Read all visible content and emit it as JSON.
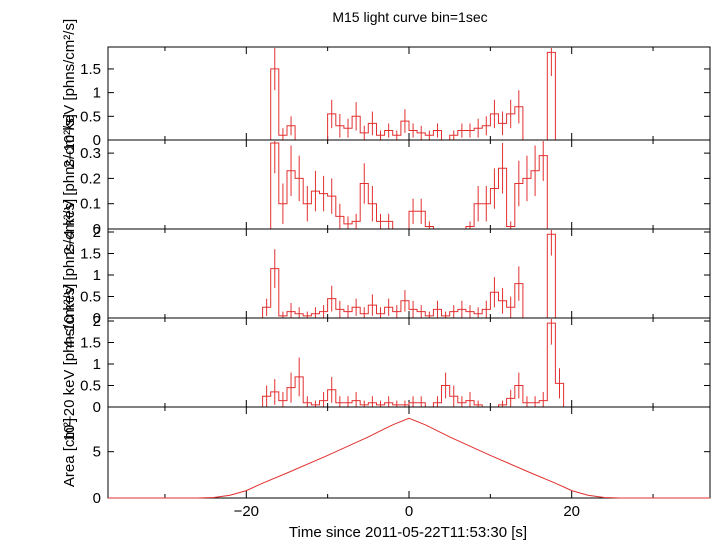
{
  "chart_data": {
    "type": "line",
    "title": "M15 light curve bin=1sec",
    "xlabel": "Time since 2011-05-22T11:53:30 [s]",
    "xlim": [
      -37,
      37
    ],
    "xticks": [
      -20,
      0,
      20
    ],
    "xtick_labels": [
      "−20",
      "0",
      "20"
    ],
    "color": "#e23030",
    "grid": false,
    "panels": [
      {
        "ylabel": "2–10 keV [phns/cm²/s]",
        "ylim": [
          0,
          1.9
        ],
        "yticks": [
          0,
          0.5,
          1,
          1.5
        ],
        "ytick_labels": [
          "0",
          "0.5",
          "1",
          "1.5"
        ],
        "series": [
          {
            "x": [
              -37,
              -19,
              -18,
              -17,
              -16,
              -15,
              -14,
              -13,
              -12,
              -11,
              -10,
              -9,
              -8,
              -7,
              -6,
              -5,
              -4,
              -3,
              -2,
              -1,
              0,
              1,
              2,
              3,
              4,
              5,
              6,
              7,
              8,
              9,
              10,
              11,
              12,
              13,
              14,
              15,
              16,
              17,
              18,
              37
            ],
            "values": [
              0,
              0,
              0,
              1.5,
              0.1,
              0.3,
              0,
              0,
              0,
              0,
              0.55,
              0.3,
              0.25,
              0.5,
              0.15,
              0.35,
              0.1,
              0.2,
              0.1,
              0.4,
              0.2,
              0.15,
              0.1,
              0.2,
              0,
              0.1,
              0.2,
              0.2,
              0.25,
              0.3,
              0.55,
              0.35,
              0.55,
              0.7,
              0,
              0,
              0,
              1.85,
              0,
              0
            ],
            "errors": [
              0,
              0,
              0,
              0.45,
              0.15,
              0.2,
              0,
              0,
              0,
              0,
              0.3,
              0.25,
              0.2,
              0.3,
              0.15,
              0.25,
              0.1,
              0.15,
              0.1,
              0.25,
              0.15,
              0.15,
              0.1,
              0.15,
              0,
              0.1,
              0.15,
              0.15,
              0.2,
              0.2,
              0.3,
              0.25,
              0.3,
              0.35,
              0,
              0,
              0,
              0.5,
              0,
              0
            ]
          }
        ]
      },
      {
        "ylabel": "2–4 keV [phns/cm²/s]",
        "ylim": [
          0,
          0.34
        ],
        "yticks": [
          0,
          0.1,
          0.2,
          0.3
        ],
        "ytick_labels": [
          "0",
          "0.1",
          "0.2",
          "0.3"
        ],
        "series": [
          {
            "x": [
              -37,
              -19,
              -18,
              -17,
              -16,
              -15,
              -14,
              -13,
              -12,
              -11,
              -10,
              -9,
              -8,
              -7,
              -6,
              -5,
              -4,
              -3,
              -2,
              -1,
              0,
              1,
              2,
              3,
              4,
              5,
              6,
              7,
              8,
              9,
              10,
              11,
              12,
              13,
              14,
              15,
              16,
              17,
              18,
              37
            ],
            "values": [
              0,
              0,
              0,
              0.34,
              0.1,
              0.23,
              0.2,
              0.1,
              0.15,
              0.14,
              0.13,
              0.05,
              0.02,
              0.03,
              0.18,
              0.1,
              0.03,
              0.03,
              0,
              0,
              0.07,
              0.07,
              0.01,
              0,
              0,
              0,
              0,
              0.01,
              0.1,
              0.1,
              0.16,
              0.24,
              0.01,
              0.18,
              0.2,
              0.23,
              0.29,
              0,
              0,
              0
            ],
            "errors": [
              0,
              0,
              0,
              0.12,
              0.08,
              0.1,
              0.09,
              0.07,
              0.08,
              0.07,
              0.07,
              0.05,
              0.03,
              0.03,
              0.08,
              0.07,
              0.03,
              0.03,
              0,
              0,
              0.05,
              0.05,
              0.02,
              0,
              0,
              0,
              0,
              0.02,
              0.07,
              0.07,
              0.08,
              0.1,
              0.02,
              0.09,
              0.09,
              0.1,
              0.1,
              0,
              0,
              0
            ]
          }
        ]
      },
      {
        "ylabel": "4–10 keV [phns/cm²/s]",
        "ylim": [
          0,
          2.0
        ],
        "yticks": [
          0,
          0.5,
          1,
          1.5,
          2
        ],
        "ytick_labels": [
          "0",
          "0.5",
          "1",
          "1.5",
          "2"
        ],
        "series": [
          {
            "x": [
              -37,
              -19,
              -18,
              -17,
              -16,
              -15,
              -14,
              -13,
              -12,
              -11,
              -10,
              -9,
              -8,
              -7,
              -6,
              -5,
              -4,
              -3,
              -2,
              -1,
              0,
              1,
              2,
              3,
              4,
              5,
              6,
              7,
              8,
              9,
              10,
              11,
              12,
              13,
              14,
              15,
              16,
              17,
              18,
              37
            ],
            "values": [
              0,
              0,
              0.25,
              1.15,
              0.05,
              0.15,
              0.1,
              0.05,
              0.1,
              0.15,
              0.45,
              0.2,
              0.15,
              0.25,
              0.1,
              0.3,
              0.1,
              0.25,
              0.15,
              0.4,
              0.2,
              0.15,
              0.05,
              0.2,
              0.05,
              0.15,
              0.2,
              0.15,
              0.1,
              0.2,
              0.6,
              0.4,
              0.25,
              0.8,
              0,
              0,
              0,
              1.95,
              0,
              0
            ],
            "errors": [
              0,
              0,
              0.2,
              0.45,
              0.1,
              0.2,
              0.15,
              0.1,
              0.15,
              0.15,
              0.3,
              0.2,
              0.15,
              0.2,
              0.15,
              0.25,
              0.15,
              0.2,
              0.15,
              0.25,
              0.2,
              0.15,
              0.1,
              0.2,
              0.1,
              0.15,
              0.2,
              0.15,
              0.15,
              0.2,
              0.35,
              0.3,
              0.25,
              0.4,
              0,
              0,
              0,
              0.5,
              0,
              0
            ]
          }
        ]
      },
      {
        "ylabel": "10–20 keV [phns/cm²/s]",
        "ylim": [
          0,
          2.0
        ],
        "yticks": [
          0,
          0.5,
          1,
          1.5,
          2
        ],
        "ytick_labels": [
          "0",
          "0.5",
          "1",
          "1.5",
          "2"
        ],
        "series": [
          {
            "x": [
              -37,
              -21,
              -20,
              -19,
              -18,
              -17,
              -16,
              -15,
              -14,
              -13,
              -12,
              -11,
              -10,
              -9,
              -8,
              -7,
              -6,
              -5,
              -4,
              -3,
              -2,
              -1,
              0,
              1,
              2,
              3,
              4,
              5,
              6,
              7,
              8,
              9,
              10,
              11,
              12,
              13,
              14,
              15,
              16,
              17,
              18,
              19,
              37
            ],
            "values": [
              0,
              0,
              0,
              0,
              0.25,
              0.35,
              0.15,
              0.45,
              0.7,
              0.1,
              0.05,
              0.15,
              0.4,
              0.1,
              0.1,
              0.15,
              0.05,
              0.1,
              0.05,
              0.1,
              0.05,
              0.05,
              0.1,
              0.1,
              0,
              0.1,
              0.5,
              0.25,
              0.1,
              0.15,
              0.05,
              0,
              0,
              0.05,
              0.2,
              0.5,
              0.1,
              0.1,
              0.15,
              1.95,
              0.55,
              0,
              0
            ],
            "errors": [
              0,
              0,
              0,
              0,
              0.25,
              0.3,
              0.2,
              0.35,
              0.45,
              0.15,
              0.1,
              0.2,
              0.3,
              0.15,
              0.15,
              0.2,
              0.1,
              0.15,
              0.1,
              0.15,
              0.1,
              0.1,
              0.15,
              0.15,
              0,
              0.15,
              0.3,
              0.25,
              0.15,
              0.2,
              0.1,
              0,
              0,
              0.1,
              0.2,
              0.3,
              0.15,
              0.15,
              0.2,
              0.5,
              0.35,
              0,
              0
            ]
          }
        ]
      },
      {
        "ylabel": "Area [cm²]",
        "ylim": [
          0,
          9.5
        ],
        "yticks": [
          0,
          5
        ],
        "ytick_labels": [
          "0",
          "5"
        ],
        "series": [
          {
            "x": [
              -37,
              -26,
              -24,
              -22,
              -20,
              -18,
              -15,
              -10,
              -5,
              -2,
              0,
              2,
              5,
              10,
              15,
              18,
              20,
              22,
              24,
              26,
              37
            ],
            "values": [
              0,
              0,
              0.05,
              0.3,
              0.8,
              1.6,
              2.7,
              4.6,
              6.6,
              7.9,
              8.6,
              7.9,
              6.6,
              4.6,
              2.7,
              1.6,
              0.8,
              0.3,
              0.05,
              0,
              0
            ],
            "errors": []
          }
        ]
      }
    ]
  }
}
